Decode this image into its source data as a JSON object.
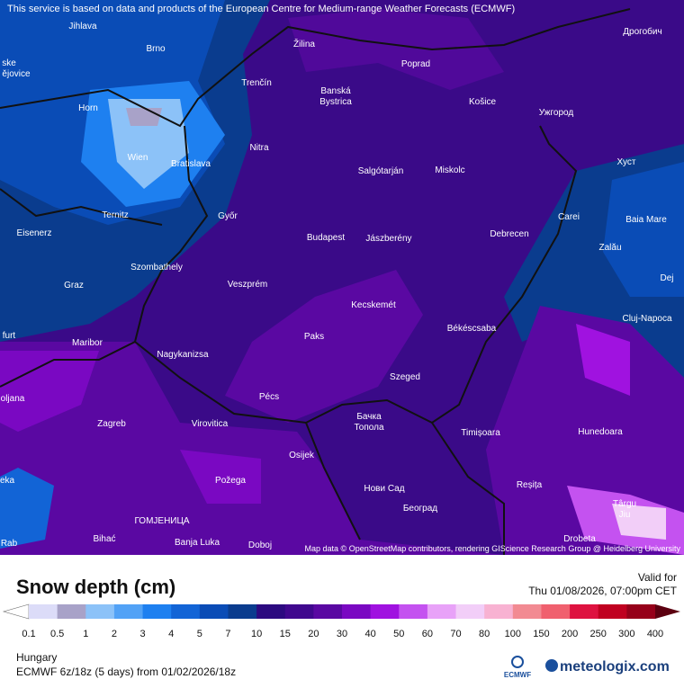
{
  "map": {
    "notice": "This service is based on data and products of the European Centre for Medium-range Weather Forecasts (ECMWF)",
    "attribution": "Map data © OpenStreetMap contributors, rendering GIScience Research Group @ Heidelberg University",
    "places": [
      "Jihlava",
      "Brno",
      "Žilina",
      "Poprad",
      "Дрогобич",
      "Trenčín",
      "Banská",
      "Bystrica",
      "Košice",
      "Ужгород",
      "Horn",
      "Wien",
      "Bratislava",
      "Nitra",
      "Salgótarján",
      "Miskolc",
      "Хуст",
      "Ternitz",
      "Győr",
      "Carei",
      "Baia Mare",
      "Eisenerz",
      "Budapest",
      "Jászberény",
      "Debrecen",
      "Szombathely",
      "Zalău",
      "Graz",
      "Veszprém",
      "Dej",
      "Kecskemét",
      "Cluj-Napoca",
      "Maribor",
      "Paks",
      "Békéscsaba",
      "Nagykanizsa",
      "Szeged",
      "Pécs",
      "Zagreb",
      "Virovitica",
      "Бачка",
      "Топола",
      "Timișoara",
      "Hunedoara",
      "Osijek",
      "Požega",
      "Нови Сад",
      "Reșița",
      "Београд",
      "ГОМЈЕНИЦА",
      "Bihać",
      "Banja Luka",
      "Doboj",
      "Târgu",
      "Jiu",
      "Drobeta",
      "ske",
      "ějovice",
      "furt",
      "oljana",
      "eka",
      "Rab"
    ]
  },
  "legend": {
    "title": "Snow depth (cm)",
    "valid_label": "Valid for",
    "valid_time": "Thu 01/08/2026, 07:00pm CET",
    "levels": [
      0.1,
      0.5,
      1,
      2,
      3,
      4,
      5,
      7,
      10,
      15,
      20,
      30,
      40,
      50,
      60,
      70,
      80,
      100,
      150,
      200,
      250,
      300,
      400
    ],
    "colors": [
      "#dcdcf8",
      "#a8a2c8",
      "#8cc2f8",
      "#52a2f6",
      "#1e80f0",
      "#1264d6",
      "#0a4cb6",
      "#0a3c8e",
      "#2c0a80",
      "#40088e",
      "#5a08a2",
      "#7a08c2",
      "#a012e0",
      "#c452f0",
      "#e8a2f8",
      "#f2cef8",
      "#f8b2d2",
      "#f28a92",
      "#f0606e",
      "#de1240",
      "#c00020",
      "#96001a"
    ],
    "over_color": "#5c0010"
  },
  "footer": {
    "region": "Hungary",
    "model": "ECMWF 6z/18z (5 days) from 01/02/2026/18z",
    "ecmwf": "ECMWF",
    "brand": "meteologix.com"
  }
}
